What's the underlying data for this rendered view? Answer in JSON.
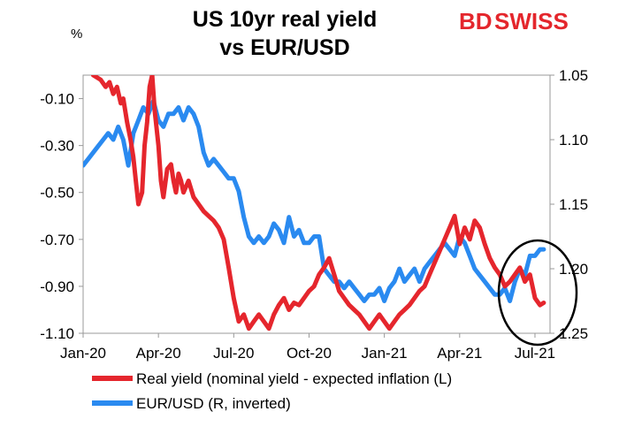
{
  "colors": {
    "real_yield": "#e5262d",
    "eurusd": "#2a8af0",
    "logo": "#e4262c"
  },
  "logo": {
    "part1": "BD",
    "part2": "SWISS"
  },
  "chart_data": {
    "type": "line",
    "title": [
      "US 10yr real yield",
      "vs EUR/USD"
    ],
    "ylabel_left_unit": "%",
    "y_left": {
      "range": [
        -1.1,
        -0.0
      ],
      "ticks": [
        "-0.10",
        "-0.30",
        "-0.50",
        "-0.70",
        "-0.90",
        "-1.10"
      ],
      "tick_values": [
        -0.1,
        -0.3,
        -0.5,
        -0.7,
        -0.9,
        -1.1
      ]
    },
    "y_right": {
      "range": [
        1.05,
        1.25
      ],
      "inverted": true,
      "ticks": [
        "1.05",
        "1.10",
        "1.15",
        "1.20",
        "1.25"
      ],
      "tick_values": [
        1.05,
        1.1,
        1.15,
        1.2,
        1.25
      ]
    },
    "x_ticks": [
      "Jan-20",
      "Apr-20",
      "Jul-20",
      "Oct-20",
      "Jan-21",
      "Apr-21",
      "Jul-21"
    ],
    "x_tick_months": [
      0,
      3,
      6,
      9,
      12,
      15,
      18
    ],
    "x_range_months": [
      0,
      18.6
    ],
    "legend": [
      {
        "key": "real_yield",
        "label": "Real yield (nominal yield - expected inflation (L)"
      },
      {
        "key": "eurusd",
        "label": "EUR/USD (R, inverted)"
      }
    ],
    "annotation": "ellipse highlighting Jun-Jul 2021",
    "series": [
      {
        "name": "Real yield",
        "axis": "left",
        "x": [
          0.4,
          0.7,
          0.9,
          1.05,
          1.2,
          1.35,
          1.5,
          1.6,
          1.75,
          1.9,
          2.0,
          2.1,
          2.2,
          2.35,
          2.45,
          2.55,
          2.65,
          2.75,
          2.85,
          3.0,
          3.1,
          3.2,
          3.35,
          3.5,
          3.6,
          3.7,
          3.8,
          3.9,
          4.0,
          4.2,
          4.4,
          4.6,
          4.8,
          5.0,
          5.2,
          5.4,
          5.6,
          5.8,
          6.0,
          6.2,
          6.4,
          6.6,
          6.8,
          7.0,
          7.2,
          7.4,
          7.6,
          7.8,
          8.0,
          8.2,
          8.4,
          8.6,
          8.8,
          9.0,
          9.2,
          9.4,
          9.6,
          9.8,
          10.0,
          10.2,
          10.4,
          10.6,
          10.8,
          11.0,
          11.2,
          11.4,
          11.6,
          11.8,
          12.0,
          12.2,
          12.4,
          12.6,
          12.8,
          13.0,
          13.2,
          13.4,
          13.6,
          13.8,
          14.0,
          14.2,
          14.4,
          14.6,
          14.8,
          15.0,
          15.2,
          15.4,
          15.6,
          15.8,
          16.0,
          16.2,
          16.4,
          16.6,
          16.8,
          17.0,
          17.2,
          17.4,
          17.6,
          17.8,
          18.0,
          18.2,
          18.35
        ],
        "values": [
          0.0,
          -0.02,
          -0.05,
          -0.03,
          -0.08,
          -0.05,
          -0.12,
          -0.1,
          -0.2,
          -0.28,
          -0.35,
          -0.45,
          -0.55,
          -0.5,
          -0.3,
          -0.2,
          -0.05,
          0.0,
          -0.15,
          -0.3,
          -0.45,
          -0.52,
          -0.4,
          -0.38,
          -0.45,
          -0.5,
          -0.42,
          -0.45,
          -0.5,
          -0.45,
          -0.52,
          -0.55,
          -0.58,
          -0.6,
          -0.62,
          -0.65,
          -0.7,
          -0.82,
          -0.95,
          -1.05,
          -1.02,
          -1.08,
          -1.05,
          -1.02,
          -1.05,
          -1.08,
          -1.02,
          -0.98,
          -0.95,
          -1.0,
          -0.97,
          -0.98,
          -0.95,
          -0.92,
          -0.9,
          -0.85,
          -0.82,
          -0.78,
          -0.85,
          -0.92,
          -0.95,
          -0.98,
          -1.0,
          -1.02,
          -1.05,
          -1.08,
          -1.05,
          -1.02,
          -1.05,
          -1.08,
          -1.05,
          -1.02,
          -1.0,
          -0.98,
          -0.95,
          -0.92,
          -0.9,
          -0.85,
          -0.8,
          -0.75,
          -0.7,
          -0.65,
          -0.6,
          -0.72,
          -0.65,
          -0.7,
          -0.62,
          -0.65,
          -0.72,
          -0.78,
          -0.82,
          -0.85,
          -0.9,
          -0.88,
          -0.85,
          -0.82,
          -0.88,
          -0.85,
          -0.95,
          -0.98,
          -0.97
        ]
      },
      {
        "name": "EUR/USD",
        "axis": "right",
        "x": [
          0.0,
          0.2,
          0.4,
          0.6,
          0.8,
          1.0,
          1.2,
          1.4,
          1.6,
          1.8,
          2.0,
          2.2,
          2.4,
          2.6,
          2.8,
          3.0,
          3.2,
          3.4,
          3.6,
          3.8,
          4.0,
          4.2,
          4.4,
          4.6,
          4.8,
          5.0,
          5.2,
          5.4,
          5.6,
          5.8,
          6.0,
          6.2,
          6.4,
          6.6,
          6.8,
          7.0,
          7.2,
          7.4,
          7.6,
          7.8,
          8.0,
          8.2,
          8.4,
          8.6,
          8.8,
          9.0,
          9.2,
          9.4,
          9.6,
          9.8,
          10.0,
          10.2,
          10.4,
          10.6,
          10.8,
          11.0,
          11.2,
          11.4,
          11.6,
          11.8,
          12.0,
          12.2,
          12.4,
          12.6,
          12.8,
          13.0,
          13.2,
          13.4,
          13.6,
          13.8,
          14.0,
          14.2,
          14.4,
          14.6,
          14.8,
          15.0,
          15.2,
          15.4,
          15.6,
          15.8,
          16.0,
          16.2,
          16.4,
          16.6,
          16.8,
          17.0,
          17.2,
          17.4,
          17.6,
          17.8,
          18.0,
          18.2,
          18.35
        ],
        "values": [
          1.12,
          1.115,
          1.11,
          1.105,
          1.1,
          1.095,
          1.1,
          1.09,
          1.1,
          1.12,
          1.095,
          1.085,
          1.075,
          1.08,
          1.07,
          1.085,
          1.09,
          1.08,
          1.08,
          1.075,
          1.085,
          1.075,
          1.08,
          1.09,
          1.11,
          1.12,
          1.115,
          1.12,
          1.125,
          1.13,
          1.13,
          1.14,
          1.16,
          1.175,
          1.18,
          1.175,
          1.18,
          1.175,
          1.165,
          1.17,
          1.18,
          1.16,
          1.175,
          1.17,
          1.18,
          1.18,
          1.175,
          1.175,
          1.2,
          1.205,
          1.21,
          1.21,
          1.215,
          1.21,
          1.215,
          1.22,
          1.225,
          1.22,
          1.22,
          1.215,
          1.225,
          1.215,
          1.21,
          1.2,
          1.21,
          1.205,
          1.2,
          1.21,
          1.2,
          1.195,
          1.19,
          1.185,
          1.18,
          1.185,
          1.19,
          1.175,
          1.18,
          1.19,
          1.2,
          1.205,
          1.21,
          1.215,
          1.22,
          1.22,
          1.215,
          1.225,
          1.21,
          1.2,
          1.205,
          1.19,
          1.19,
          1.185,
          1.185
        ]
      }
    ]
  }
}
